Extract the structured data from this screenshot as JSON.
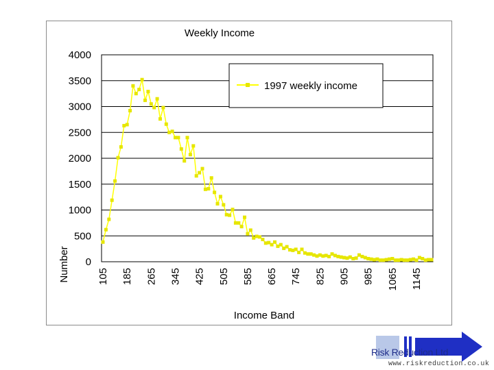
{
  "chart_data": {
    "type": "line",
    "title": "Weekly Income",
    "xlabel": "Income Band",
    "ylabel": "Number",
    "ylim": [
      0,
      4000
    ],
    "yticks": [
      "0",
      "500",
      "1000",
      "1500",
      "2000",
      "2500",
      "3000",
      "3500",
      "4000"
    ],
    "xticks": [
      "105",
      "185",
      "265",
      "345",
      "425",
      "505",
      "585",
      "665",
      "745",
      "825",
      "905",
      "985",
      "1065",
      "1145"
    ],
    "grid": "horizontal",
    "legend_position": "top-right",
    "series": [
      {
        "name": "1997 weekly income",
        "color": "#ffff00",
        "marker_color": "#e6e600",
        "x": [
          105,
          115,
          125,
          135,
          145,
          155,
          165,
          175,
          185,
          195,
          205,
          215,
          225,
          235,
          245,
          255,
          265,
          275,
          285,
          295,
          305,
          315,
          325,
          335,
          345,
          355,
          365,
          375,
          385,
          395,
          405,
          415,
          425,
          435,
          445,
          455,
          465,
          475,
          485,
          495,
          505,
          515,
          525,
          535,
          545,
          555,
          565,
          575,
          585,
          595,
          605,
          615,
          625,
          635,
          645,
          655,
          665,
          675,
          685,
          695,
          705,
          715,
          725,
          735,
          745,
          755,
          765,
          775,
          785,
          795,
          805,
          815,
          825,
          835,
          845,
          855,
          865,
          875,
          885,
          895,
          905,
          915,
          925,
          935,
          945,
          955,
          965,
          975,
          985,
          995,
          1005,
          1015,
          1025,
          1035,
          1045,
          1055,
          1065,
          1075,
          1085,
          1095,
          1105,
          1115,
          1125,
          1135,
          1145,
          1155,
          1165,
          1175,
          1185,
          1195
        ],
        "y": [
          380,
          620,
          820,
          1190,
          1560,
          2010,
          2220,
          2630,
          2650,
          2920,
          3400,
          3250,
          3330,
          3520,
          3120,
          3290,
          3050,
          2980,
          3150,
          2760,
          2980,
          2660,
          2500,
          2520,
          2400,
          2400,
          2180,
          1950,
          2400,
          2070,
          2240,
          1660,
          1720,
          1800,
          1400,
          1410,
          1620,
          1340,
          1120,
          1260,
          1100,
          910,
          900,
          1010,
          750,
          750,
          680,
          860,
          540,
          610,
          460,
          490,
          480,
          430,
          360,
          370,
          330,
          380,
          300,
          330,
          260,
          290,
          230,
          220,
          240,
          180,
          240,
          170,
          150,
          150,
          130,
          110,
          130,
          110,
          120,
          100,
          150,
          120,
          100,
          90,
          80,
          70,
          90,
          60,
          70,
          130,
          100,
          80,
          60,
          50,
          40,
          50,
          30,
          30,
          40,
          50,
          60,
          30,
          30,
          40,
          30,
          30,
          40,
          50,
          30,
          80,
          60,
          30,
          40,
          40
        ]
      }
    ]
  },
  "logo": {
    "name": "Risk Reduction Ltd",
    "url": "www.riskreduction.co.uk"
  }
}
